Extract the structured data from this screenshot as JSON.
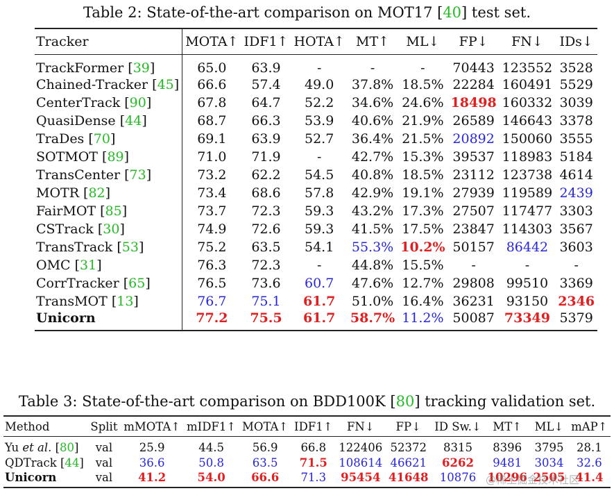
{
  "table2": {
    "caption_pre": "Table 2: State-of-the-art comparison on MOT17 [",
    "caption_ref": "40",
    "caption_post": "] test set.",
    "headers": [
      "Tracker",
      "MOTA↑",
      "IDF1↑",
      "HOTA↑",
      "MT↑",
      "ML↓",
      "FP↓",
      "FN↓",
      "IDs↓"
    ],
    "rows": [
      {
        "name": "TrackFormer",
        "ref": "39",
        "bold": false,
        "cells": [
          {
            "v": "65.0"
          },
          {
            "v": "63.9"
          },
          {
            "v": "-"
          },
          {
            "v": "-"
          },
          {
            "v": "-"
          },
          {
            "v": "70443"
          },
          {
            "v": "123552"
          },
          {
            "v": "3528"
          }
        ]
      },
      {
        "name": "Chained-Tracker",
        "ref": "45",
        "bold": false,
        "cells": [
          {
            "v": "66.6"
          },
          {
            "v": "57.4"
          },
          {
            "v": "49.0"
          },
          {
            "v": "37.8%"
          },
          {
            "v": "18.5%"
          },
          {
            "v": "22284"
          },
          {
            "v": "160491"
          },
          {
            "v": "5529"
          }
        ]
      },
      {
        "name": "CenterTrack",
        "ref": "90",
        "bold": false,
        "cells": [
          {
            "v": "67.8"
          },
          {
            "v": "64.7"
          },
          {
            "v": "52.2"
          },
          {
            "v": "34.6%"
          },
          {
            "v": "24.6%"
          },
          {
            "v": "18498",
            "s": "red"
          },
          {
            "v": "160332"
          },
          {
            "v": "3039"
          }
        ]
      },
      {
        "name": "QuasiDense",
        "ref": "44",
        "bold": false,
        "cells": [
          {
            "v": "68.7"
          },
          {
            "v": "66.3"
          },
          {
            "v": "53.9"
          },
          {
            "v": "40.6%"
          },
          {
            "v": "21.9%"
          },
          {
            "v": "26589"
          },
          {
            "v": "146643"
          },
          {
            "v": "3378"
          }
        ]
      },
      {
        "name": "TraDes",
        "ref": "70",
        "bold": false,
        "cells": [
          {
            "v": "69.1"
          },
          {
            "v": "63.9"
          },
          {
            "v": "52.7"
          },
          {
            "v": "36.4%"
          },
          {
            "v": "21.5%"
          },
          {
            "v": "20892",
            "s": "blue"
          },
          {
            "v": "150060"
          },
          {
            "v": "3555"
          }
        ]
      },
      {
        "name": "SOTMOT",
        "ref": "89",
        "bold": false,
        "cells": [
          {
            "v": "71.0"
          },
          {
            "v": "71.9"
          },
          {
            "v": "-"
          },
          {
            "v": "42.7%"
          },
          {
            "v": "15.3%"
          },
          {
            "v": "39537"
          },
          {
            "v": "118983"
          },
          {
            "v": "5184"
          }
        ]
      },
      {
        "name": "TransCenter",
        "ref": "73",
        "bold": false,
        "cells": [
          {
            "v": "73.2"
          },
          {
            "v": "62.2"
          },
          {
            "v": "54.5"
          },
          {
            "v": "40.8%"
          },
          {
            "v": "18.5%"
          },
          {
            "v": "23112"
          },
          {
            "v": "123738"
          },
          {
            "v": "4614"
          }
        ]
      },
      {
        "name": "MOTR",
        "ref": "82",
        "bold": false,
        "cells": [
          {
            "v": "73.4"
          },
          {
            "v": "68.6"
          },
          {
            "v": "57.8"
          },
          {
            "v": "42.9%"
          },
          {
            "v": "19.1%"
          },
          {
            "v": "27939"
          },
          {
            "v": "119589"
          },
          {
            "v": "2439",
            "s": "blue"
          }
        ]
      },
      {
        "name": "FairMOT",
        "ref": "85",
        "bold": false,
        "cells": [
          {
            "v": "73.7"
          },
          {
            "v": "72.3"
          },
          {
            "v": "59.3"
          },
          {
            "v": "43.2%"
          },
          {
            "v": "17.3%"
          },
          {
            "v": "27507"
          },
          {
            "v": "117477"
          },
          {
            "v": "3303"
          }
        ]
      },
      {
        "name": "CSTrack",
        "ref": "30",
        "bold": false,
        "cells": [
          {
            "v": "74.9"
          },
          {
            "v": "72.6"
          },
          {
            "v": "59.3"
          },
          {
            "v": "41.5%"
          },
          {
            "v": "17.5%"
          },
          {
            "v": "23847"
          },
          {
            "v": "114303"
          },
          {
            "v": "3567"
          }
        ]
      },
      {
        "name": "TransTrack",
        "ref": "53",
        "bold": false,
        "cells": [
          {
            "v": "75.2"
          },
          {
            "v": "63.5"
          },
          {
            "v": "54.1"
          },
          {
            "v": "55.3%",
            "s": "blue"
          },
          {
            "v": "10.2%",
            "s": "red"
          },
          {
            "v": "50157"
          },
          {
            "v": "86442",
            "s": "blue"
          },
          {
            "v": "3603"
          }
        ]
      },
      {
        "name": "OMC",
        "ref": "31",
        "bold": false,
        "cells": [
          {
            "v": "76.3"
          },
          {
            "v": "72.3"
          },
          {
            "v": "-"
          },
          {
            "v": "44.8%"
          },
          {
            "v": "15.5%"
          },
          {
            "v": "-"
          },
          {
            "v": "-"
          },
          {
            "v": "-"
          }
        ]
      },
      {
        "name": "CorrTracker",
        "ref": "65",
        "bold": false,
        "cells": [
          {
            "v": "76.5"
          },
          {
            "v": "73.6"
          },
          {
            "v": "60.7",
            "s": "blue"
          },
          {
            "v": "47.6%"
          },
          {
            "v": "12.7%"
          },
          {
            "v": "29808"
          },
          {
            "v": "99510"
          },
          {
            "v": "3369"
          }
        ]
      },
      {
        "name": "TransMOT",
        "ref": "13",
        "bold": false,
        "cells": [
          {
            "v": "76.7",
            "s": "blue"
          },
          {
            "v": "75.1",
            "s": "blue"
          },
          {
            "v": "61.7",
            "s": "red"
          },
          {
            "v": "51.0%"
          },
          {
            "v": "16.4%"
          },
          {
            "v": "36231"
          },
          {
            "v": "93150"
          },
          {
            "v": "2346",
            "s": "red"
          }
        ]
      },
      {
        "name": "Unicorn",
        "ref": "",
        "bold": true,
        "cells": [
          {
            "v": "77.2",
            "s": "red"
          },
          {
            "v": "75.5",
            "s": "red"
          },
          {
            "v": "61.7",
            "s": "red"
          },
          {
            "v": "58.7%",
            "s": "red"
          },
          {
            "v": "11.2%",
            "s": "blue"
          },
          {
            "v": "50087"
          },
          {
            "v": "73349",
            "s": "red"
          },
          {
            "v": "5379"
          }
        ]
      }
    ]
  },
  "table3": {
    "caption_pre": "Table 3: State-of-the-art comparison on BDD100K [",
    "caption_ref": "80",
    "caption_post": "] tracking validation set.",
    "headers": [
      "Method",
      "Split",
      "mMOTA↑",
      "mIDF1↑",
      "MOTA↑",
      "IDF1↑",
      "FN↓",
      "FP↓",
      "ID Sw.↓",
      "MT↑",
      "ML↓",
      "mAP↑"
    ],
    "rows": [
      {
        "name": "Yu",
        "name_italic": "et al.",
        "ref": "80",
        "bold": false,
        "cells": [
          {
            "v": "val"
          },
          {
            "v": "25.9"
          },
          {
            "v": "44.5"
          },
          {
            "v": "56.9"
          },
          {
            "v": "66.8"
          },
          {
            "v": "122406"
          },
          {
            "v": "52372"
          },
          {
            "v": "8315"
          },
          {
            "v": "8396"
          },
          {
            "v": "3795"
          },
          {
            "v": "28.1"
          }
        ]
      },
      {
        "name": "QDTrack",
        "name_italic": "",
        "ref": "44",
        "bold": false,
        "cells": [
          {
            "v": "val"
          },
          {
            "v": "36.6",
            "s": "blue"
          },
          {
            "v": "50.8",
            "s": "blue"
          },
          {
            "v": "63.5",
            "s": "blue"
          },
          {
            "v": "71.5",
            "s": "red"
          },
          {
            "v": "108614",
            "s": "blue"
          },
          {
            "v": "46621",
            "s": "blue"
          },
          {
            "v": "6262",
            "s": "red"
          },
          {
            "v": "9481",
            "s": "blue"
          },
          {
            "v": "3034",
            "s": "blue"
          },
          {
            "v": "32.6",
            "s": "blue"
          }
        ]
      },
      {
        "name": "Unicorn",
        "name_italic": "",
        "ref": "",
        "bold": true,
        "cells": [
          {
            "v": "val"
          },
          {
            "v": "41.2",
            "s": "red"
          },
          {
            "v": "54.0",
            "s": "red"
          },
          {
            "v": "66.6",
            "s": "red"
          },
          {
            "v": "71.3",
            "s": "blue"
          },
          {
            "v": "95454",
            "s": "red"
          },
          {
            "v": "41648",
            "s": "red"
          },
          {
            "v": "10876",
            "s": "blue"
          },
          {
            "v": "10296",
            "s": "red"
          },
          {
            "v": "2505",
            "s": "red"
          },
          {
            "v": "41.4",
            "s": "red"
          }
        ]
      }
    ]
  },
  "watermark": "@稀土掘金技术社区"
}
